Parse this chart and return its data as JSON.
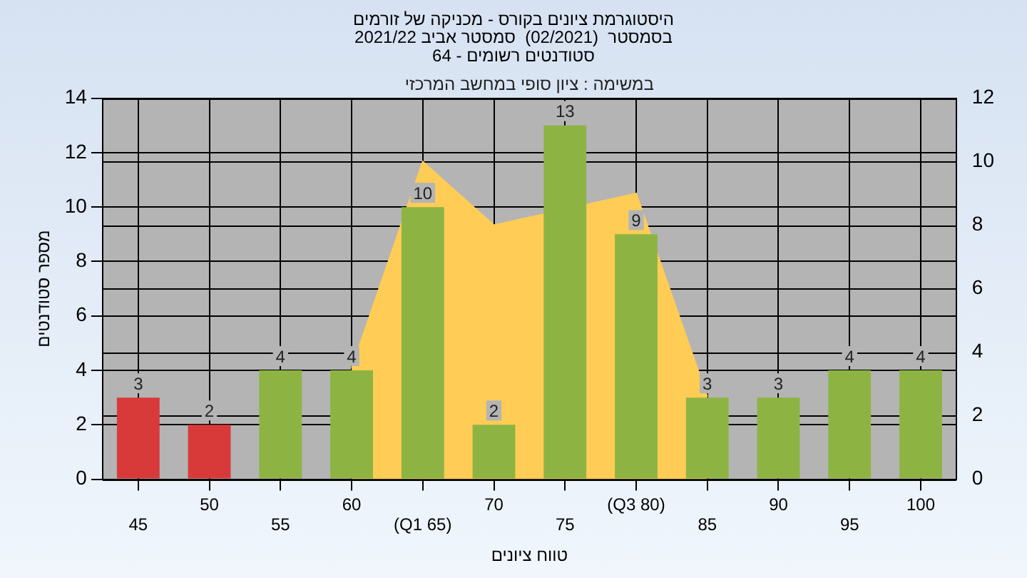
{
  "chart_data": {
    "type": "bar",
    "title": "היסטוגרמת ציונים בקורס - מכניקה של זורמים\nבסמסטר  (02/2021)  סמסטר אביב 2021/22\nסטודנטים רשומים - 64",
    "annotations": [
      "במשימה : ציון סופי במחשב המרכזי"
    ],
    "xlabel": "טווח ציונים",
    "ylabel": "מספר סטודנטים",
    "categories": [
      "45",
      "50",
      "55",
      "60",
      "(Q1 65)",
      "70",
      "75",
      "(Q3 80)",
      "85",
      "90",
      "95",
      "100"
    ],
    "series": [
      {
        "type": "area",
        "axis": "y2",
        "color": "#ffcc55",
        "values": [
          null,
          null,
          null,
          3.5,
          10,
          8,
          null,
          9,
          2.6,
          null,
          null,
          null
        ]
      },
      {
        "colors": [
          "#d83a3a",
          "#d83a3a",
          "#8db443",
          "#8db443",
          "#8db443",
          "#8db443",
          "#8db443",
          "#8db443",
          "#8db443",
          "#8db443",
          "#8db443",
          "#8db443"
        ],
        "values": [
          3,
          2,
          4,
          4,
          10,
          2,
          13,
          9,
          3,
          3,
          4,
          4
        ],
        "value_labels": [
          "3",
          "2",
          "4",
          "4",
          "10",
          "2",
          "13",
          "9",
          "3",
          "3",
          "4",
          "4"
        ]
      }
    ],
    "ylim": [
      0,
      14
    ],
    "yticks": [
      0,
      2,
      4,
      6,
      8,
      10,
      12,
      14
    ],
    "y2lim": [
      0,
      12
    ],
    "y2ticks": [
      0,
      2,
      4,
      6,
      8,
      10,
      12
    ],
    "grid": true,
    "legend": false
  }
}
